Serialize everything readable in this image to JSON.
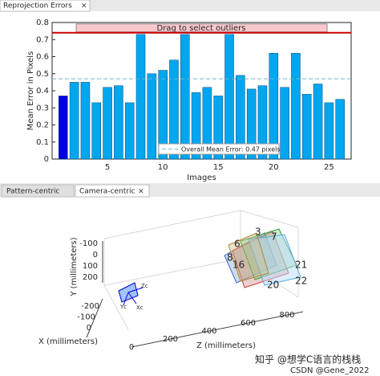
{
  "tabs": {
    "top": [
      "Reprojection Errors"
    ],
    "bottom": [
      "Pattern-centric",
      "Camera-centric"
    ],
    "close": "×"
  },
  "chart_data": [
    {
      "type": "bar",
      "xlabel": "Images",
      "ylabel": "Mean Error in Pixels",
      "x": [
        1,
        2,
        3,
        4,
        5,
        6,
        7,
        8,
        9,
        10,
        11,
        12,
        13,
        14,
        15,
        16,
        17,
        18,
        19,
        20,
        21,
        22,
        23,
        24,
        25,
        26
      ],
      "values": [
        0.37,
        0.45,
        0.45,
        0.33,
        0.42,
        0.43,
        0.33,
        0.73,
        0.5,
        0.52,
        0.58,
        0.73,
        0.39,
        0.42,
        0.37,
        0.73,
        0.49,
        0.41,
        0.43,
        0.62,
        0.42,
        0.62,
        0.38,
        0.44,
        0.33,
        0.35
      ],
      "color": "#00a6ee",
      "selected_color": "#0000e0",
      "selected_x": 1,
      "xlim": [
        0,
        27
      ],
      "xticks": [
        5,
        10,
        15,
        20,
        25
      ],
      "ylim": [
        0,
        0.8
      ],
      "yticks": [
        0,
        0.1,
        0.2,
        0.3,
        0.4,
        0.5,
        0.6,
        0.7,
        0.8
      ],
      "outlier_threshold": 0.74,
      "outlier_color": "#cc0000",
      "outlier_label": "Drag to select outliers",
      "mean": 0.47,
      "mean_color": "#7ab8c8",
      "mean_label": "Overall Mean Error: 0.47 pixels"
    },
    {
      "type": "3d",
      "xlabel": "X (millimeters)",
      "ylabel": "Y (millimeters)",
      "zlabel": "Z (millimeters)",
      "xlim": [
        -200,
        0
      ],
      "xticks": [
        -200,
        -100,
        0
      ],
      "ylim": [
        -100,
        200
      ],
      "yticks": [
        -100,
        0,
        100,
        200
      ],
      "zlim": [
        0,
        800
      ],
      "zticks": [
        0,
        200,
        400,
        600,
        800
      ],
      "camera_axes": [
        "Zc",
        "Yc",
        "Xc"
      ],
      "board_labels": [
        "3",
        "7",
        "6",
        "8",
        "16",
        "21",
        "22",
        "20"
      ],
      "watermark": [
        "知乎 @想学C语言的栈栈",
        "CSDN @Gene_2022"
      ]
    }
  ]
}
